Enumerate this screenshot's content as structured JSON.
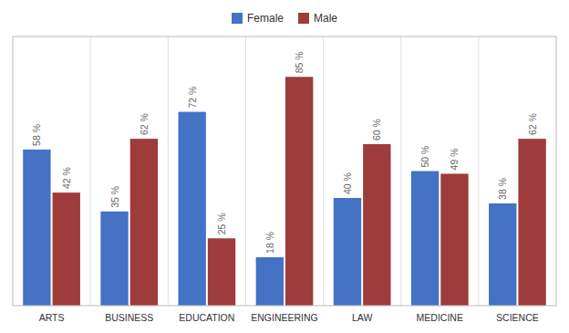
{
  "chart_data": {
    "type": "bar",
    "categories": [
      "ARTS",
      "BUSINESS",
      "EDUCATION",
      "ENGINEERING",
      "LAW",
      "MEDICINE",
      "SCIENCE"
    ],
    "series": [
      {
        "name": "Female",
        "color": "#4472C4",
        "values": [
          58,
          35,
          72,
          18,
          40,
          50,
          38
        ],
        "value_labels": [
          "58 %",
          "35 %",
          "72 %",
          "18 %",
          "40 %",
          "50 %",
          "38 %"
        ]
      },
      {
        "name": "Male",
        "color": "#9E3B3B",
        "values": [
          42,
          62,
          25,
          85,
          60,
          49,
          62
        ],
        "value_labels": [
          "42 %",
          "62 %",
          "25 %",
          "85 %",
          "60 %",
          "49 %",
          "62 %"
        ]
      }
    ],
    "ylim": [
      0,
      100
    ],
    "tick_labels": "x",
    "data_labels": true,
    "legend": "top"
  }
}
